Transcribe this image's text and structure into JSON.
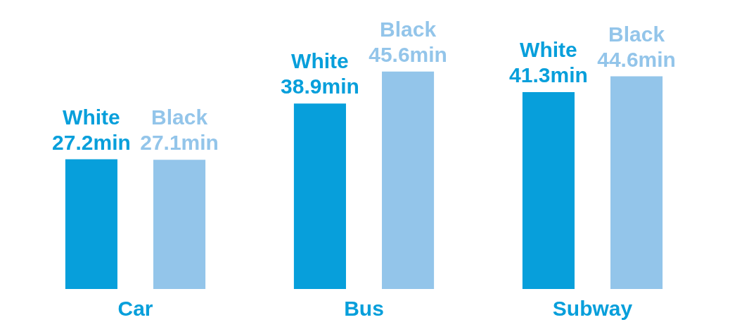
{
  "chart_data": {
    "type": "bar",
    "categories": [
      "Car",
      "Bus",
      "Subway"
    ],
    "series": [
      {
        "name": "White",
        "color": "#079fdb",
        "values": [
          27.2,
          38.9,
          41.3
        ],
        "value_labels": [
          "27.2min",
          "38.9min",
          "41.3min"
        ]
      },
      {
        "name": "Black",
        "color": "#93c5ea",
        "values": [
          27.1,
          45.6,
          44.6
        ],
        "value_labels": [
          "27.1min",
          "45.6min",
          "44.6min"
        ]
      }
    ],
    "grid": false,
    "legend": false
  }
}
